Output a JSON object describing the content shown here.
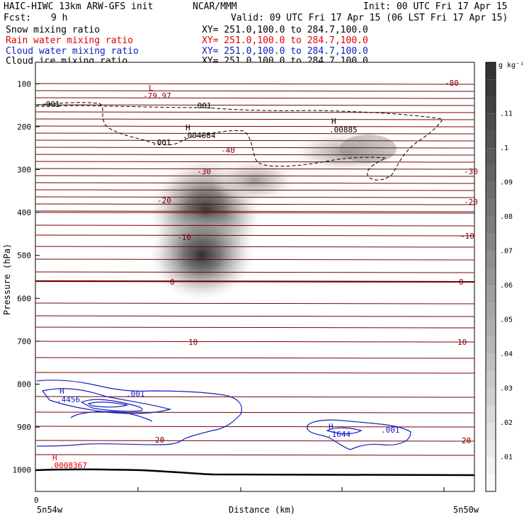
{
  "header": {
    "title": "HAIC-HIWC 13km ARW-GFS init",
    "org": "NCAR/MMM",
    "init": "Init: 00 UTC Fri 17 Apr 15",
    "fcst_label": "Fcst:",
    "fcst_value": "9 h",
    "valid": "Valid: 09 UTC Fri 17 Apr 15 (06 LST Fri 17 Apr 15)"
  },
  "fields": [
    {
      "label": "Snow mixing ratio",
      "xy": "XY= 251.0,100.0 to 284.7,100.0",
      "color": "#000000"
    },
    {
      "label": "Rain water mixing ratio",
      "xy": "XY= 251.0,100.0 to 284.7,100.0",
      "color": "#e00000"
    },
    {
      "label": "Cloud water mixing ratio",
      "xy": "XY= 251.0,100.0 to 284.7,100.0",
      "color": "#1020c0"
    },
    {
      "label": "Cloud ice mixing ratio",
      "xy": "XY= 251.0,100.0 to 284.7,100.0",
      "color": "#000000"
    }
  ],
  "chart_data": {
    "type": "heatmap",
    "ylabel": "Pressure (hPa)",
    "xlabel": "Distance (km)",
    "yticks": [
      100,
      200,
      300,
      400,
      500,
      600,
      700,
      800,
      900,
      1000
    ],
    "ylim": [
      1050,
      50
    ],
    "x_start_label": "0",
    "x_left_label": "5n54w",
    "x_right_label": "5n50w",
    "colorbar": {
      "unit": "g kg⁻¹",
      "ticks": [
        ".01",
        ".02",
        ".03",
        ".04",
        ".05",
        ".06",
        ".07",
        ".08",
        ".09",
        ".1",
        ".11"
      ],
      "range": [
        0,
        0.125
      ]
    },
    "temperature_contour_labels": [
      "-80",
      "-40",
      "-30",
      "-30",
      "-20",
      "-20",
      "-10",
      "-10",
      "0",
      "0",
      "10",
      "10",
      "20",
      "20"
    ],
    "annotations": [
      {
        "mark": "L",
        "value": "-79.97",
        "color": "#8b0000"
      },
      {
        "mark": "H",
        "value": ".004084",
        "color": "#000000"
      },
      {
        "mark": "H",
        "value": ".00885",
        "color": "#000000"
      },
      {
        "mark": "H",
        "value": ".4456",
        "color": "#1020c0"
      },
      {
        "mark": "H",
        "value": ".1644",
        "color": "#1020c0"
      },
      {
        "mark": "H",
        "value": ".0008367",
        "color": "#e00000"
      }
    ],
    "contour_labels": [
      {
        "text": ".001",
        "color": "#000000"
      },
      {
        "text": ".001",
        "color": "#000000"
      },
      {
        "text": ".001",
        "color": "#000000"
      },
      {
        "text": ".001",
        "color": "#1020c0"
      },
      {
        "text": ".001",
        "color": "#1020c0"
      }
    ],
    "snow_blobs": [
      {
        "center_km": 0.44,
        "center_hpa": 380,
        "peak": 0.12
      },
      {
        "center_km": 0.47,
        "center_hpa": 320,
        "peak": 0.1
      },
      {
        "center_km": 0.58,
        "center_hpa": 270,
        "peak": 0.05
      },
      {
        "center_km": 0.8,
        "center_hpa": 240,
        "peak": 0.07
      }
    ]
  }
}
